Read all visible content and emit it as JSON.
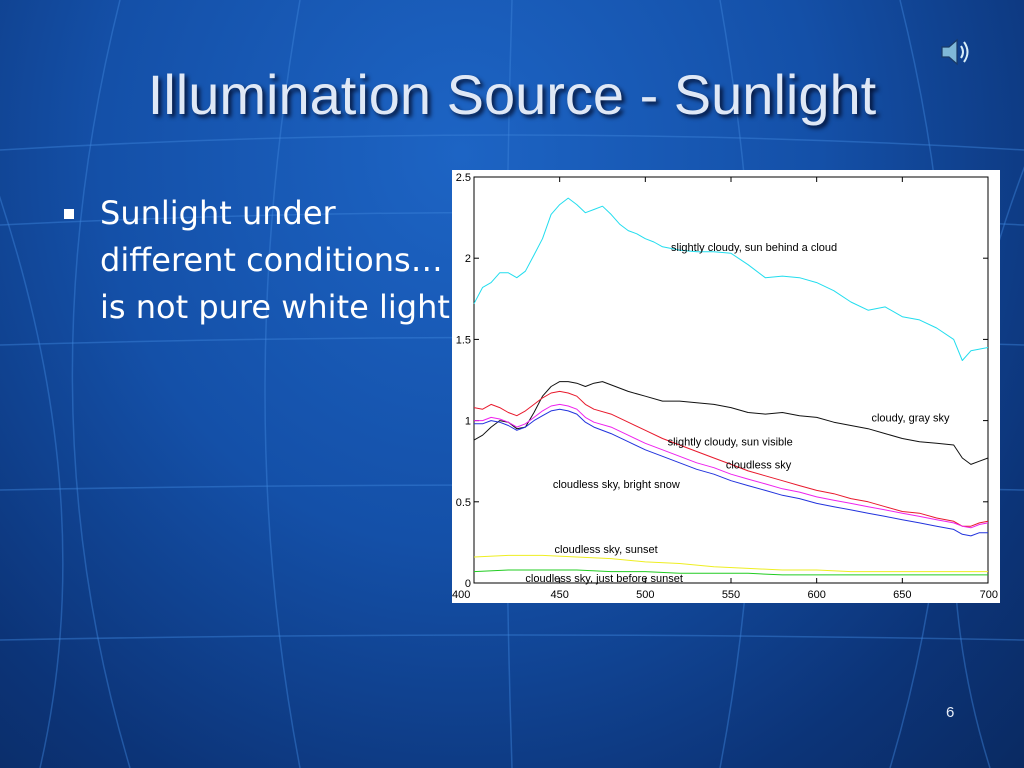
{
  "slide": {
    "title": "Illumination Source - Sunlight",
    "bullet": "Sunlight under different conditions…is not pure white light",
    "page_number": "6",
    "icon": "speaker-icon"
  },
  "colors": {
    "background": "#1450a8",
    "title_text": "#dfe8f6",
    "body_text": "#ffffff"
  },
  "chart_data": {
    "type": "line",
    "xlim": [
      400,
      700
    ],
    "ylim": [
      0,
      2.5
    ],
    "xticks": [
      400,
      450,
      500,
      550,
      600,
      650,
      700
    ],
    "yticks": [
      0,
      0.5,
      1,
      1.5,
      2,
      2.5
    ],
    "grid": false,
    "series": [
      {
        "name": "slightly cloudy, sun behind a cloud",
        "color": "#22ddee",
        "label_at": [
          515,
          2.07
        ],
        "x": [
          400,
          405,
          410,
          415,
          420,
          425,
          430,
          435,
          440,
          445,
          450,
          455,
          460,
          465,
          470,
          475,
          480,
          485,
          490,
          495,
          500,
          505,
          510,
          520,
          530,
          540,
          550,
          560,
          570,
          580,
          590,
          600,
          610,
          620,
          630,
          640,
          650,
          660,
          670,
          680,
          685,
          690,
          695,
          700
        ],
        "y": [
          1.72,
          1.82,
          1.85,
          1.91,
          1.91,
          1.88,
          1.92,
          2.02,
          2.12,
          2.27,
          2.33,
          2.37,
          2.33,
          2.28,
          2.3,
          2.32,
          2.27,
          2.21,
          2.17,
          2.15,
          2.12,
          2.1,
          2.07,
          2.05,
          2.04,
          2.04,
          2.03,
          1.96,
          1.88,
          1.89,
          1.88,
          1.85,
          1.8,
          1.73,
          1.68,
          1.7,
          1.64,
          1.62,
          1.57,
          1.5,
          1.37,
          1.43,
          1.44,
          1.45
        ]
      },
      {
        "name": "cloudy, gray sky",
        "color": "#111111",
        "label_at": [
          632,
          1.02
        ],
        "x": [
          400,
          405,
          410,
          415,
          420,
          425,
          430,
          435,
          440,
          445,
          450,
          455,
          460,
          465,
          470,
          475,
          480,
          490,
          500,
          510,
          520,
          530,
          540,
          550,
          560,
          570,
          580,
          590,
          600,
          610,
          620,
          630,
          640,
          650,
          660,
          670,
          680,
          685,
          690,
          695,
          700
        ],
        "y": [
          0.88,
          0.91,
          0.96,
          1.0,
          0.99,
          0.95,
          0.96,
          1.05,
          1.15,
          1.21,
          1.24,
          1.24,
          1.23,
          1.21,
          1.23,
          1.24,
          1.22,
          1.18,
          1.15,
          1.12,
          1.12,
          1.11,
          1.1,
          1.08,
          1.05,
          1.04,
          1.05,
          1.03,
          1.02,
          0.99,
          0.97,
          0.95,
          0.92,
          0.89,
          0.87,
          0.86,
          0.85,
          0.77,
          0.73,
          0.75,
          0.77
        ]
      },
      {
        "name": "slightly cloudy, sun visible",
        "color": "#e8192c",
        "label_at": [
          513,
          0.87
        ],
        "x": [
          400,
          405,
          410,
          415,
          420,
          425,
          430,
          435,
          440,
          445,
          450,
          455,
          460,
          465,
          470,
          480,
          490,
          500,
          510,
          520,
          530,
          540,
          550,
          560,
          570,
          580,
          590,
          600,
          610,
          620,
          630,
          640,
          650,
          660,
          670,
          680,
          685,
          690,
          695,
          700
        ],
        "y": [
          1.08,
          1.07,
          1.1,
          1.08,
          1.05,
          1.03,
          1.06,
          1.1,
          1.14,
          1.17,
          1.18,
          1.17,
          1.15,
          1.1,
          1.07,
          1.04,
          0.99,
          0.94,
          0.89,
          0.85,
          0.81,
          0.77,
          0.73,
          0.69,
          0.66,
          0.63,
          0.6,
          0.57,
          0.55,
          0.52,
          0.5,
          0.47,
          0.44,
          0.43,
          0.4,
          0.38,
          0.35,
          0.35,
          0.37,
          0.38
        ]
      },
      {
        "name": "cloudless sky",
        "color": "#ee22ee",
        "label_at": [
          547,
          0.73
        ],
        "x": [
          400,
          405,
          410,
          415,
          420,
          425,
          430,
          435,
          440,
          445,
          450,
          455,
          460,
          465,
          470,
          480,
          490,
          500,
          510,
          520,
          530,
          540,
          550,
          560,
          570,
          580,
          590,
          600,
          610,
          620,
          630,
          640,
          650,
          660,
          670,
          680,
          685,
          690,
          695,
          700
        ],
        "y": [
          1.0,
          1.0,
          1.02,
          1.01,
          0.99,
          0.96,
          0.98,
          1.02,
          1.06,
          1.09,
          1.1,
          1.09,
          1.07,
          1.02,
          0.99,
          0.96,
          0.91,
          0.86,
          0.82,
          0.78,
          0.74,
          0.71,
          0.67,
          0.64,
          0.61,
          0.58,
          0.56,
          0.53,
          0.51,
          0.49,
          0.47,
          0.45,
          0.43,
          0.41,
          0.39,
          0.37,
          0.35,
          0.34,
          0.36,
          0.37
        ]
      },
      {
        "name": "cloudless sky, bright snow",
        "color": "#2233dd",
        "label_at": [
          446,
          0.61
        ],
        "x": [
          400,
          405,
          410,
          415,
          420,
          425,
          430,
          435,
          440,
          445,
          450,
          455,
          460,
          465,
          470,
          480,
          490,
          500,
          510,
          520,
          530,
          540,
          550,
          560,
          570,
          580,
          590,
          600,
          610,
          620,
          630,
          640,
          650,
          660,
          670,
          680,
          685,
          690,
          695,
          700
        ],
        "y": [
          0.98,
          0.98,
          1.0,
          0.99,
          0.97,
          0.94,
          0.96,
          1.0,
          1.03,
          1.06,
          1.07,
          1.06,
          1.04,
          0.99,
          0.96,
          0.92,
          0.87,
          0.82,
          0.78,
          0.74,
          0.7,
          0.67,
          0.63,
          0.6,
          0.57,
          0.54,
          0.52,
          0.49,
          0.47,
          0.45,
          0.43,
          0.41,
          0.39,
          0.37,
          0.35,
          0.33,
          0.3,
          0.29,
          0.31,
          0.31
        ]
      },
      {
        "name": "cloudless sky, sunset",
        "color": "#eeee22",
        "label_at": [
          447,
          0.21
        ],
        "x": [
          400,
          420,
          440,
          460,
          480,
          500,
          520,
          540,
          560,
          580,
          600,
          620,
          640,
          660,
          680,
          700
        ],
        "y": [
          0.16,
          0.17,
          0.17,
          0.16,
          0.15,
          0.13,
          0.12,
          0.1,
          0.09,
          0.08,
          0.08,
          0.07,
          0.07,
          0.07,
          0.07,
          0.07
        ]
      },
      {
        "name": "cloudless sky, just before sunset",
        "color": "#22cc22",
        "label_at": [
          430,
          0.03
        ],
        "x": [
          400,
          420,
          440,
          460,
          480,
          500,
          520,
          540,
          560,
          580,
          600,
          620,
          640,
          660,
          680,
          700
        ],
        "y": [
          0.07,
          0.08,
          0.08,
          0.08,
          0.07,
          0.07,
          0.06,
          0.06,
          0.06,
          0.05,
          0.05,
          0.05,
          0.05,
          0.05,
          0.05,
          0.05
        ]
      }
    ]
  }
}
